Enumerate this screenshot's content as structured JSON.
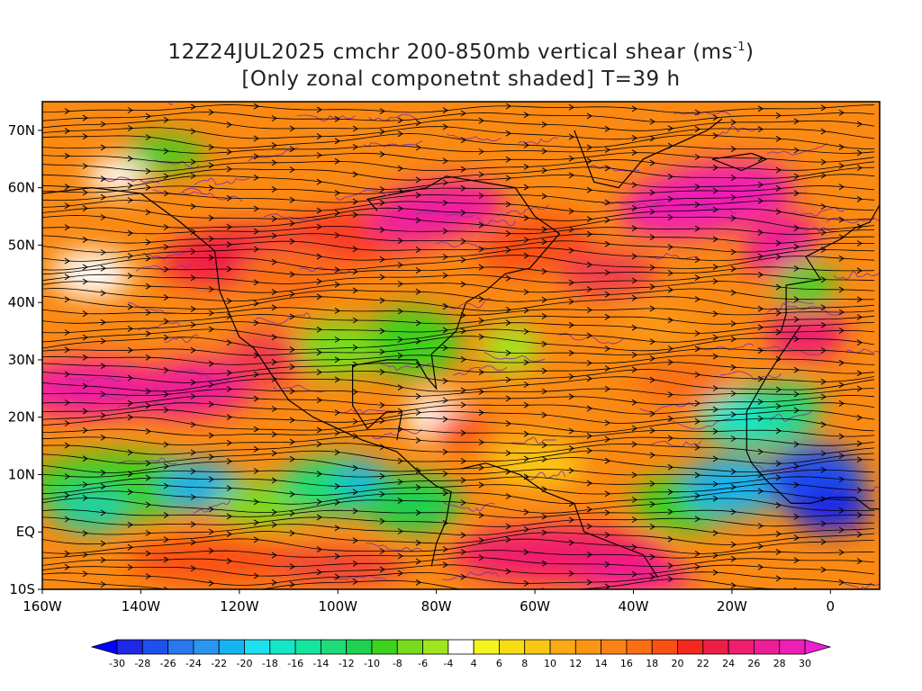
{
  "title": {
    "line1_prefix": "12Z24JUL2025 cmchr 200-850mb vertical shear (ms",
    "line1_sup": "-1",
    "line1_suffix": ")",
    "line2": "[Only zonal componetnt shaded] T=39 h"
  },
  "axes": {
    "lat_labels": [
      "70N",
      "60N",
      "50N",
      "40N",
      "30N",
      "20N",
      "10N",
      "EQ",
      "10S"
    ],
    "lat_values": [
      70,
      60,
      50,
      40,
      30,
      20,
      10,
      0,
      -10
    ],
    "lon_labels": [
      "160W",
      "140W",
      "120W",
      "100W",
      "80W",
      "60W",
      "40W",
      "20W",
      "0"
    ],
    "lon_values": [
      -160,
      -140,
      -120,
      -100,
      -80,
      -60,
      -40,
      -20,
      0
    ],
    "lon_range": [
      -160,
      10
    ],
    "lat_range": [
      -10,
      75
    ]
  },
  "colorbar": {
    "labels": [
      "-30",
      "-28",
      "-26",
      "-24",
      "-22",
      "-20",
      "-18",
      "-16",
      "-14",
      "-12",
      "-10",
      "-8",
      "-6",
      "-4",
      "4",
      "6",
      "8",
      "10",
      "12",
      "14",
      "16",
      "18",
      "20",
      "22",
      "24",
      "26",
      "28",
      "30"
    ],
    "colors": [
      "#1e28e6",
      "#1e50f0",
      "#2a78f0",
      "#2a96f0",
      "#14b4f0",
      "#1ee1f0",
      "#14e6c8",
      "#14e6a0",
      "#1edc78",
      "#1ed250",
      "#3cd21e",
      "#78dc1e",
      "#a0e61e",
      "#ffffff",
      "#f5f51e",
      "#fadc14",
      "#fac814",
      "#faaa14",
      "#fa9614",
      "#fa8214",
      "#fa6e14",
      "#fa5014",
      "#f5281e",
      "#f01e46",
      "#f01e6e",
      "#f01e96",
      "#f01eb4"
    ],
    "under_color": "#0000ff",
    "over_color": "#f01ed2"
  },
  "legend_colors": {
    "streamline": "#000000",
    "contour": "#9030a0",
    "border": "#000000"
  }
}
